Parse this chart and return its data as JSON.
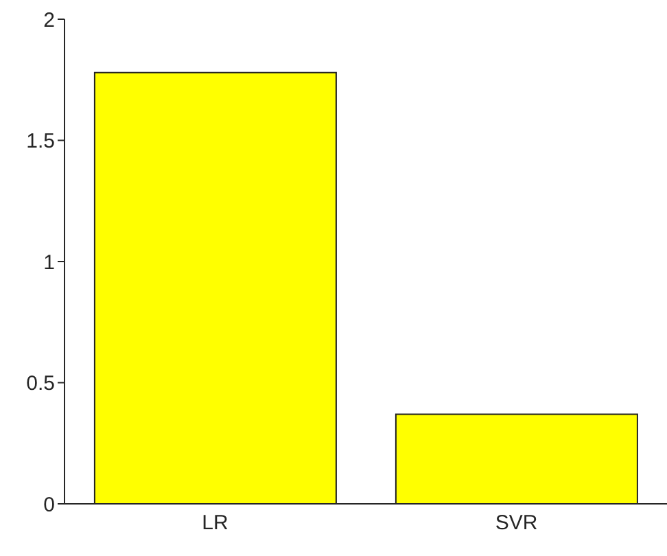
{
  "chart_data": {
    "type": "bar",
    "categories": [
      "LR",
      "SVR"
    ],
    "values": [
      1.78,
      0.37
    ],
    "color": "#ffff00",
    "ylim": [
      0,
      2
    ],
    "yticks": [
      0,
      0.5,
      1,
      1.5,
      2
    ],
    "grid": false
  }
}
